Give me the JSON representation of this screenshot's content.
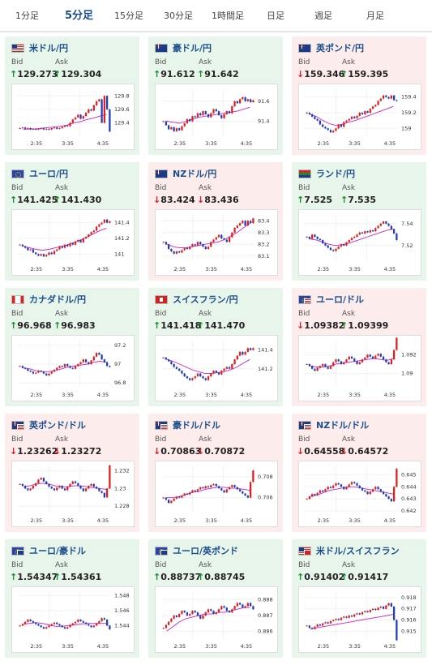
{
  "tabs": [
    {
      "label": "1分足",
      "active": false
    },
    {
      "label": "5分足",
      "active": true
    },
    {
      "label": "15分足",
      "active": false
    },
    {
      "label": "30分足",
      "active": false
    },
    {
      "label": "1時間足",
      "active": false
    },
    {
      "label": "日足",
      "active": false
    },
    {
      "label": "週足",
      "active": false
    },
    {
      "label": "月足",
      "active": false
    }
  ],
  "bid_label": "Bid",
  "ask_label": "Ask",
  "x_ticks": [
    "2:35",
    "3:35",
    "4:35"
  ],
  "colors": {
    "up_bg": "#e8f5ea",
    "down_bg": "#fdecec",
    "bull": "#e02020",
    "bear": "#1f3fbf",
    "ma": "#d020d0",
    "accent": "#1a4f8b"
  },
  "pairs": [
    {
      "name": "米ドル/円",
      "flag": "us-flag",
      "trend": "up",
      "bid": "129.273",
      "ask": "129.304",
      "bid_dir": "up",
      "ask_dir": "up",
      "yticks": [
        "129.8",
        "129.6",
        "129.4"
      ],
      "ylim": [
        129.2,
        129.9
      ],
      "closes": [
        129.32,
        129.33,
        129.31,
        129.32,
        129.3,
        129.31,
        129.3,
        129.31,
        129.32,
        129.3,
        129.31,
        129.3,
        129.32,
        129.33,
        129.31,
        129.32,
        129.34,
        129.36,
        129.35,
        129.4,
        129.45,
        129.48,
        129.52,
        129.46,
        129.5,
        129.55,
        129.6,
        129.58,
        129.66,
        129.72,
        129.75,
        129.4,
        129.8,
        129.6,
        129.27
      ],
      "ma": [
        129.3,
        129.31,
        129.31,
        129.32,
        129.33,
        129.34,
        129.35,
        129.37,
        129.4,
        129.42,
        129.45,
        129.47,
        129.5,
        129.52
      ]
    },
    {
      "name": "豪ドル/円",
      "flag": "au-flag",
      "trend": "up",
      "bid": "91.612",
      "ask": "91.642",
      "bid_dir": "up",
      "ask_dir": "up",
      "yticks": [
        "91.6",
        "91.4"
      ],
      "ylim": [
        91.25,
        91.72
      ],
      "closes": [
        91.4,
        91.36,
        91.32,
        91.34,
        91.3,
        91.33,
        91.31,
        91.35,
        91.38,
        91.42,
        91.4,
        91.45,
        91.44,
        91.48,
        91.46,
        91.5,
        91.47,
        91.44,
        91.48,
        91.52,
        91.5,
        91.46,
        91.43,
        91.47,
        91.5,
        91.48,
        91.55,
        91.6,
        91.58,
        91.62,
        91.64,
        91.6,
        91.62,
        91.59,
        91.61
      ],
      "ma": [
        91.4,
        91.39,
        91.38,
        91.4,
        91.42,
        91.44,
        91.45,
        91.46,
        91.47,
        91.48,
        91.49,
        91.5,
        91.52,
        91.54
      ]
    },
    {
      "name": "英ポンド/円",
      "flag": "gb-flag",
      "trend": "down",
      "bid": "159.346",
      "ask": "159.395",
      "bid_dir": "down",
      "ask_dir": "up",
      "yticks": [
        "159.4",
        "159.2",
        "159"
      ],
      "ylim": [
        158.9,
        159.5
      ],
      "closes": [
        159.2,
        159.18,
        159.15,
        159.12,
        159.1,
        159.05,
        159.02,
        159.0,
        158.98,
        158.95,
        158.97,
        159.0,
        159.05,
        159.02,
        159.08,
        159.1,
        159.12,
        159.15,
        159.13,
        159.16,
        159.2,
        159.18,
        159.22,
        159.2,
        159.25,
        159.28,
        159.3,
        159.35,
        159.38,
        159.42,
        159.4,
        159.38,
        159.42,
        159.36,
        159.35
      ],
      "ma": [
        159.18,
        159.15,
        159.1,
        159.06,
        159.04,
        159.05,
        159.08,
        159.1,
        159.13,
        159.16,
        159.19,
        159.22,
        159.25,
        159.28
      ]
    },
    {
      "name": "ユーロ/円",
      "flag": "eu-flag",
      "trend": "up",
      "bid": "141.425",
      "ask": "141.430",
      "bid_dir": "up",
      "ask_dir": "up",
      "yticks": [
        "141.4",
        "141.2",
        "141"
      ],
      "ylim": [
        140.9,
        141.5
      ],
      "closes": [
        141.12,
        141.1,
        141.08,
        141.05,
        141.06,
        141.02,
        141.0,
        140.98,
        141.0,
        140.97,
        140.99,
        141.02,
        141.0,
        141.04,
        141.06,
        141.1,
        141.08,
        141.12,
        141.1,
        141.14,
        141.12,
        141.16,
        141.18,
        141.15,
        141.2,
        141.22,
        141.25,
        141.28,
        141.3,
        141.35,
        141.38,
        141.4,
        141.44,
        141.4,
        141.42
      ],
      "ma": [
        141.1,
        141.08,
        141.06,
        141.05,
        141.06,
        141.08,
        141.1,
        141.12,
        141.15,
        141.18,
        141.22,
        141.26,
        141.3,
        141.33
      ]
    },
    {
      "name": "NZドル/円",
      "flag": "nz-flag",
      "trend": "down",
      "bid": "83.424",
      "ask": "83.436",
      "bid_dir": "down",
      "ask_dir": "down",
      "yticks": [
        "83.4",
        "83.3",
        "83.2",
        "83.1"
      ],
      "ylim": [
        83.05,
        83.45
      ],
      "closes": [
        83.22,
        83.2,
        83.16,
        83.14,
        83.12,
        83.14,
        83.13,
        83.15,
        83.17,
        83.16,
        83.18,
        83.2,
        83.19,
        83.22,
        83.2,
        83.18,
        83.16,
        83.18,
        83.22,
        83.24,
        83.26,
        83.28,
        83.25,
        83.24,
        83.22,
        83.26,
        83.3,
        83.34,
        83.36,
        83.38,
        83.4,
        83.36,
        83.4,
        83.38,
        83.42
      ],
      "ma": [
        83.2,
        83.18,
        83.17,
        83.17,
        83.18,
        83.19,
        83.2,
        83.21,
        83.22,
        83.24,
        83.27,
        83.3,
        83.34,
        83.38
      ]
    },
    {
      "name": "ランド/円",
      "flag": "za-flag",
      "trend": "up",
      "bid": "7.525",
      "ask": "7.535",
      "bid_dir": "up",
      "ask_dir": "up",
      "yticks": [
        "7.54",
        "7.52"
      ],
      "ylim": [
        7.505,
        7.548
      ],
      "closes": [
        7.528,
        7.526,
        7.53,
        7.528,
        7.526,
        7.525,
        7.522,
        7.52,
        7.518,
        7.516,
        7.515,
        7.517,
        7.519,
        7.521,
        7.52,
        7.523,
        7.525,
        7.527,
        7.528,
        7.53,
        7.532,
        7.531,
        7.533,
        7.532,
        7.534,
        7.533,
        7.536,
        7.538,
        7.54,
        7.542,
        7.54,
        7.538,
        7.535,
        7.531,
        7.525
      ],
      "ma": [
        7.526,
        7.525,
        7.523,
        7.521,
        7.52,
        7.521,
        7.522,
        7.524,
        7.526,
        7.528,
        7.53,
        7.532,
        7.534,
        7.535
      ]
    },
    {
      "name": "カナダドル/円",
      "flag": "ca-flag",
      "trend": "up",
      "bid": "96.968",
      "ask": "96.983",
      "bid_dir": "up",
      "ask_dir": "up",
      "yticks": [
        "97.2",
        "97",
        "96.8"
      ],
      "ylim": [
        96.75,
        97.25
      ],
      "closes": [
        96.98,
        96.96,
        96.95,
        96.93,
        96.92,
        96.9,
        96.91,
        96.93,
        96.92,
        96.9,
        96.88,
        96.9,
        96.92,
        96.94,
        96.96,
        96.98,
        96.97,
        97.0,
        96.98,
        96.96,
        96.95,
        96.98,
        97.0,
        97.02,
        97.05,
        97.02,
        97.0,
        97.04,
        97.08,
        97.12,
        97.1,
        97.05,
        97.02,
        96.98,
        96.97
      ],
      "ma": [
        96.96,
        96.95,
        96.93,
        96.92,
        96.92,
        96.93,
        96.95,
        96.97,
        96.98,
        96.99,
        97.0,
        97.02,
        97.03,
        97.02
      ]
    },
    {
      "name": "スイスフラン/円",
      "flag": "ch-flag",
      "trend": "up",
      "bid": "141.418",
      "ask": "141.470",
      "bid_dir": "up",
      "ask_dir": "up",
      "yticks": [
        "141.4",
        "141.2"
      ],
      "ylim": [
        141.0,
        141.5
      ],
      "closes": [
        141.32,
        141.3,
        141.28,
        141.25,
        141.22,
        141.2,
        141.18,
        141.15,
        141.12,
        141.1,
        141.08,
        141.1,
        141.12,
        141.15,
        141.12,
        141.1,
        141.08,
        141.12,
        141.15,
        141.18,
        141.16,
        141.14,
        141.18,
        141.2,
        141.22,
        141.2,
        141.25,
        141.3,
        141.34,
        141.38,
        141.35,
        141.38,
        141.42,
        141.4,
        141.42
      ],
      "ma": [
        141.3,
        141.28,
        141.25,
        141.22,
        141.19,
        141.17,
        141.15,
        141.15,
        141.16,
        141.17,
        141.19,
        141.22,
        141.26,
        141.3
      ]
    },
    {
      "name": "ユーロ/ドル",
      "flag": "eu-us-flag",
      "trend": "down",
      "bid": "1.09382",
      "ask": "1.09399",
      "bid_dir": "down",
      "ask_dir": "up",
      "yticks": [
        "1.092",
        "1.09"
      ],
      "ylim": [
        1.0885,
        1.0935
      ],
      "closes": [
        1.091,
        1.0908,
        1.0905,
        1.0903,
        1.0906,
        1.0908,
        1.091,
        1.0907,
        1.0905,
        1.0908,
        1.0912,
        1.0915,
        1.0913,
        1.091,
        1.0912,
        1.0915,
        1.0918,
        1.0916,
        1.0913,
        1.091,
        1.0912,
        1.0915,
        1.0917,
        1.092,
        1.0918,
        1.0916,
        1.0919,
        1.0921,
        1.0918,
        1.0915,
        1.0912,
        1.091,
        1.0915,
        1.0925,
        1.0938
      ],
      "ma": [
        1.0908,
        1.0907,
        1.0907,
        1.0908,
        1.091,
        1.0911,
        1.0912,
        1.0913,
        1.0914,
        1.0915,
        1.0916,
        1.0915,
        1.0914,
        1.0916
      ]
    },
    {
      "name": "英ポンド/ドル",
      "flag": "gb-us-flag",
      "trend": "down",
      "bid": "1.23262",
      "ask": "1.23272",
      "bid_dir": "down",
      "ask_dir": "down",
      "yticks": [
        "1.232",
        "1.23",
        "1.228"
      ],
      "ylim": [
        1.2272,
        1.2325
      ],
      "closes": [
        1.2305,
        1.2303,
        1.23,
        1.2298,
        1.23,
        1.2303,
        1.2306,
        1.231,
        1.2312,
        1.2308,
        1.2305,
        1.2302,
        1.23,
        1.2298,
        1.2301,
        1.2303,
        1.23,
        1.2298,
        1.2302,
        1.2305,
        1.2308,
        1.2306,
        1.2303,
        1.23,
        1.2297,
        1.23,
        1.2303,
        1.2305,
        1.2302,
        1.23,
        1.2297,
        1.2295,
        1.229,
        1.23,
        1.2326
      ],
      "ma": [
        1.2302,
        1.2303,
        1.2305,
        1.2306,
        1.2305,
        1.2303,
        1.2302,
        1.2302,
        1.2303,
        1.2303,
        1.2302,
        1.2301,
        1.23,
        1.2299
      ]
    },
    {
      "name": "豪ドル/ドル",
      "flag": "au-us-flag",
      "trend": "down",
      "bid": "0.70863",
      "ask": "0.70872",
      "bid_dir": "down",
      "ask_dir": "down",
      "yticks": [
        "0.708",
        "0.706"
      ],
      "ylim": [
        0.7045,
        0.709
      ],
      "closes": [
        0.706,
        0.7058,
        0.7055,
        0.7057,
        0.7059,
        0.7061,
        0.706,
        0.7062,
        0.7064,
        0.7063,
        0.7065,
        0.7067,
        0.7066,
        0.7068,
        0.707,
        0.7069,
        0.7071,
        0.707,
        0.7072,
        0.7073,
        0.7071,
        0.7069,
        0.7067,
        0.7065,
        0.7068,
        0.707,
        0.7072,
        0.707,
        0.7068,
        0.7066,
        0.7064,
        0.7062,
        0.706,
        0.7075,
        0.7086
      ],
      "ma": [
        0.706,
        0.706,
        0.7061,
        0.7063,
        0.7065,
        0.7066,
        0.7068,
        0.7069,
        0.707,
        0.707,
        0.7069,
        0.7069,
        0.7068,
        0.7067
      ]
    },
    {
      "name": "NZドル/ドル",
      "flag": "nz-us-flag",
      "trend": "down",
      "bid": "0.64558",
      "ask": "0.64572",
      "bid_dir": "down",
      "ask_dir": "down",
      "yticks": [
        "0.645",
        "0.644",
        "0.643",
        "0.642"
      ],
      "ylim": [
        0.6418,
        0.6457
      ],
      "closes": [
        0.643,
        0.6432,
        0.6434,
        0.6433,
        0.6435,
        0.6437,
        0.6436,
        0.6438,
        0.644,
        0.6439,
        0.6441,
        0.6443,
        0.6442,
        0.644,
        0.6438,
        0.644,
        0.6442,
        0.6444,
        0.6443,
        0.6441,
        0.6439,
        0.6437,
        0.6436,
        0.6434,
        0.6436,
        0.6438,
        0.644,
        0.6438,
        0.6436,
        0.6434,
        0.6432,
        0.643,
        0.6428,
        0.644,
        0.6455
      ],
      "ma": [
        0.6432,
        0.6433,
        0.6435,
        0.6437,
        0.6438,
        0.6439,
        0.644,
        0.644,
        0.6439,
        0.6438,
        0.6437,
        0.6436,
        0.6435,
        0.6434
      ]
    },
    {
      "name": "ユーロ/豪ドル",
      "flag": "eu-au-flag",
      "trend": "up",
      "bid": "1.54347",
      "ask": "1.54361",
      "bid_dir": "up",
      "ask_dir": "up",
      "yticks": [
        "1.548",
        "1.546",
        "1.544"
      ],
      "ylim": [
        1.5422,
        1.5485
      ],
      "closes": [
        1.544,
        1.5442,
        1.5445,
        1.5448,
        1.5446,
        1.5444,
        1.5442,
        1.544,
        1.5438,
        1.5436,
        1.5438,
        1.544,
        1.5442,
        1.5444,
        1.5442,
        1.544,
        1.5438,
        1.5436,
        1.5438,
        1.5441,
        1.5443,
        1.5445,
        1.5448,
        1.5446,
        1.5444,
        1.5442,
        1.544,
        1.5438,
        1.544,
        1.5443,
        1.5446,
        1.545,
        1.5448,
        1.544,
        1.5435
      ],
      "ma": [
        1.5442,
        1.5443,
        1.5444,
        1.5443,
        1.5441,
        1.5439,
        1.5439,
        1.544,
        1.5441,
        1.5442,
        1.5443,
        1.5443,
        1.5443,
        1.5443
      ]
    },
    {
      "name": "ユーロ/英ポンド",
      "flag": "eu-gb-flag",
      "trend": "up",
      "bid": "0.88737",
      "ask": "0.88745",
      "bid_dir": "up",
      "ask_dir": "up",
      "yticks": [
        "0.888",
        "0.887",
        "0.886"
      ],
      "ylim": [
        0.8855,
        0.8885
      ],
      "closes": [
        0.8862,
        0.8864,
        0.8866,
        0.8868,
        0.887,
        0.8869,
        0.8871,
        0.8873,
        0.8872,
        0.887,
        0.8871,
        0.8873,
        0.8872,
        0.887,
        0.8868,
        0.887,
        0.8872,
        0.8874,
        0.8873,
        0.8871,
        0.8872,
        0.8874,
        0.8876,
        0.8875,
        0.8873,
        0.8872,
        0.8874,
        0.8876,
        0.8878,
        0.8877,
        0.8875,
        0.8876,
        0.8878,
        0.8876,
        0.8874
      ],
      "ma": [
        0.886,
        0.8863,
        0.8866,
        0.8868,
        0.8869,
        0.887,
        0.8871,
        0.8871,
        0.8872,
        0.8872,
        0.8873,
        0.8874,
        0.8875,
        0.8875
      ]
    },
    {
      "name": "米ドル/スイスフラン",
      "flag": "us-ch-flag",
      "trend": "up",
      "bid": "0.91402",
      "ask": "0.91417",
      "bid_dir": "up",
      "ask_dir": "up",
      "yticks": [
        "0.918",
        "0.917",
        "0.916",
        "0.915"
      ],
      "ylim": [
        0.9143,
        0.9185
      ],
      "closes": [
        0.9155,
        0.9153,
        0.9152,
        0.9154,
        0.9156,
        0.9155,
        0.9157,
        0.9158,
        0.9157,
        0.9159,
        0.916,
        0.9161,
        0.916,
        0.9162,
        0.9163,
        0.9162,
        0.9164,
        0.9163,
        0.9165,
        0.9166,
        0.9165,
        0.9167,
        0.9168,
        0.9167,
        0.9169,
        0.917,
        0.9169,
        0.9171,
        0.9172,
        0.917,
        0.9173,
        0.9175,
        0.9172,
        0.916,
        0.9142
      ],
      "ma": [
        0.9152,
        0.9153,
        0.9154,
        0.9155,
        0.9156,
        0.9157,
        0.9158,
        0.9159,
        0.916,
        0.9161,
        0.9162,
        0.9163,
        0.9164,
        0.9165
      ]
    }
  ]
}
